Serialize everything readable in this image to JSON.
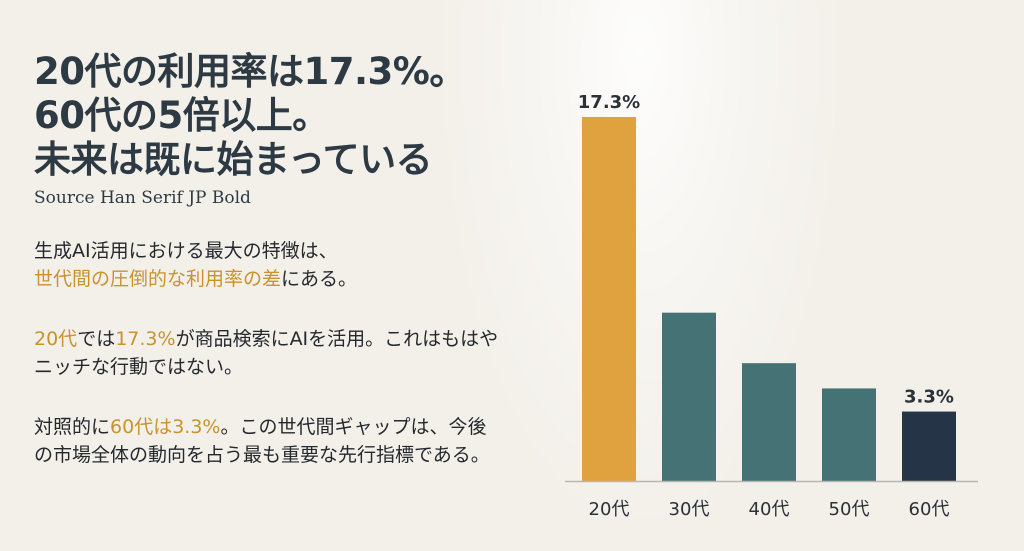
{
  "headline": {
    "line1": "20代の利用率は17.3%。",
    "line2": "60代の5倍以上。",
    "line3": "未来は既に始まっている"
  },
  "font_note": "Source Han Serif JP Bold",
  "paragraphs": {
    "p1": {
      "a": "生成AI活用における最大の特徴は、",
      "b": "世代間の圧倒的な利用率の差",
      "c": "にある。"
    },
    "p2": {
      "a": "20代",
      "b": "では",
      "c": "17.3%",
      "d": "が商品検索にAIを活用。これはもはやニッチな行動ではない。"
    },
    "p3": {
      "a": "対照的に",
      "b": "60代は3.3%",
      "c": "。この世代間ギャップは、今後の市場全体の動向を占う最も重要な先行指標である。"
    }
  },
  "colors": {
    "highlight": "#c8922f",
    "bar_gold": "#e0a23e",
    "bar_teal": "#457274",
    "bar_navy": "#263447"
  },
  "chart_data": {
    "type": "bar",
    "categories": [
      "20代",
      "30代",
      "40代",
      "50代",
      "60代"
    ],
    "values": [
      17.3,
      8.0,
      5.6,
      4.4,
      3.3
    ],
    "data_labels": [
      "17.3%",
      "",
      "",
      "",
      "3.3%"
    ],
    "bar_colors": [
      "#e0a23e",
      "#457274",
      "#457274",
      "#457274",
      "#263447"
    ],
    "ylim": [
      0,
      17.3
    ],
    "grid": false,
    "legend": "none"
  }
}
